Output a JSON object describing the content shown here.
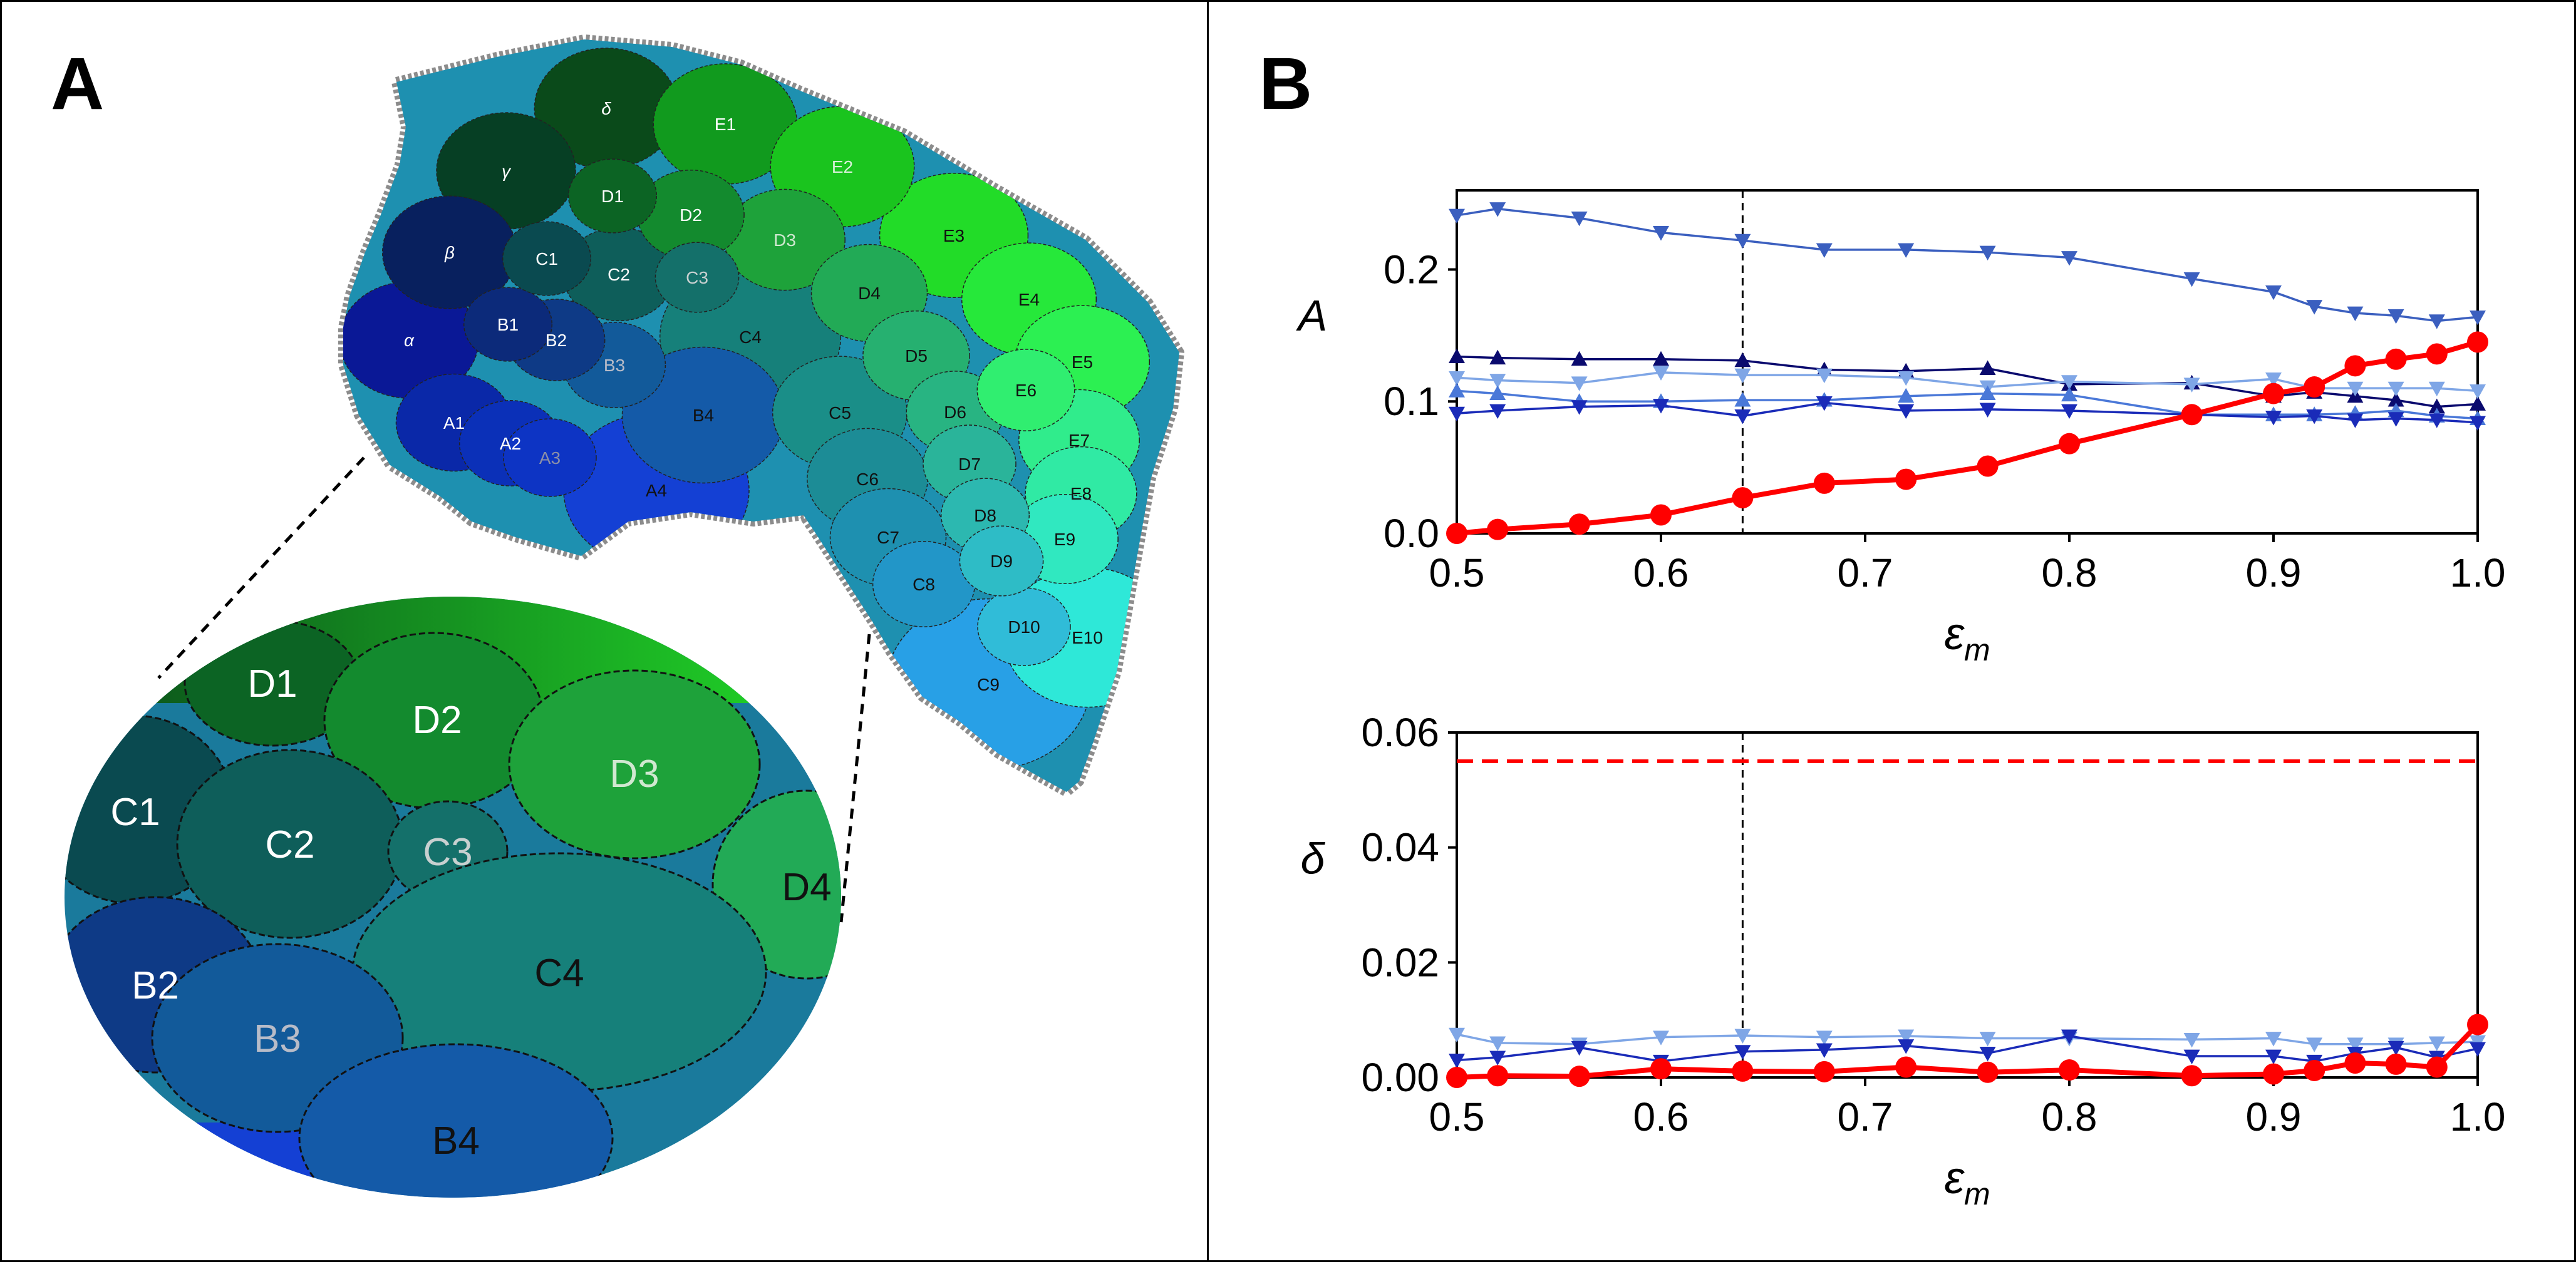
{
  "figure": {
    "panel_a_label": "A",
    "panel_b_label": "B"
  },
  "barrel_map": {
    "barrels": [
      {
        "label": "α",
        "color": "#0a1896",
        "text_color": "#ffffff"
      },
      {
        "label": "β",
        "color": "#08205e",
        "text_color": "#ffffff"
      },
      {
        "label": "γ",
        "color": "#063f24",
        "text_color": "#ffffff"
      },
      {
        "label": "δ",
        "color": "#0a4a1a",
        "text_color": "#ffffff"
      },
      {
        "label": "A1",
        "color": "#0a28a8",
        "text_color": "#ffffff"
      },
      {
        "label": "A2",
        "color": "#0b30b8",
        "text_color": "#ffffff"
      },
      {
        "label": "A3",
        "color": "#0d34c4",
        "text_color": "#8a8fa8"
      },
      {
        "label": "A4",
        "color": "#1440d4",
        "text_color": "#111111"
      },
      {
        "label": "B1",
        "color": "#0c2a7a",
        "text_color": "#ffffff"
      },
      {
        "label": "B2",
        "color": "#0e3a86",
        "text_color": "#ffffff"
      },
      {
        "label": "B3",
        "color": "#125a9a",
        "text_color": "#b8bcc8"
      },
      {
        "label": "B4",
        "color": "#145aa8",
        "text_color": "#111111"
      },
      {
        "label": "C1",
        "color": "#0a4a50",
        "text_color": "#ffffff"
      },
      {
        "label": "C2",
        "color": "#0e5e5a",
        "text_color": "#ffffff"
      },
      {
        "label": "C3",
        "color": "#14706a",
        "text_color": "#c8d0d0"
      },
      {
        "label": "C4",
        "color": "#16807a",
        "text_color": "#111111"
      },
      {
        "label": "C5",
        "color": "#1a8e88",
        "text_color": "#111111"
      },
      {
        "label": "C6",
        "color": "#1c8c96",
        "text_color": "#111111"
      },
      {
        "label": "C7",
        "color": "#1e90b0",
        "text_color": "#111111"
      },
      {
        "label": "C8",
        "color": "#2296c8",
        "text_color": "#111111"
      },
      {
        "label": "C9",
        "color": "#28a0e6",
        "text_color": "#111111"
      },
      {
        "label": "D1",
        "color": "#0c6424",
        "text_color": "#ffffff"
      },
      {
        "label": "D2",
        "color": "#138a2e",
        "text_color": "#ffffff"
      },
      {
        "label": "D3",
        "color": "#1ea23a",
        "text_color": "#d0e8d0"
      },
      {
        "label": "D4",
        "color": "#22aa56",
        "text_color": "#111111"
      },
      {
        "label": "D5",
        "color": "#26b070",
        "text_color": "#111111"
      },
      {
        "label": "D6",
        "color": "#28b482",
        "text_color": "#111111"
      },
      {
        "label": "D7",
        "color": "#2ab49a",
        "text_color": "#111111"
      },
      {
        "label": "D8",
        "color": "#2cb8b0",
        "text_color": "#111111"
      },
      {
        "label": "D9",
        "color": "#2ebcc6",
        "text_color": "#111111"
      },
      {
        "label": "D10",
        "color": "#30bcd8",
        "text_color": "#111111"
      },
      {
        "label": "E1",
        "color": "#119a1e",
        "text_color": "#ffffff"
      },
      {
        "label": "E2",
        "color": "#1ac41e",
        "text_color": "#d8f0d8"
      },
      {
        "label": "E3",
        "color": "#22dc28",
        "text_color": "#111111"
      },
      {
        "label": "E4",
        "color": "#26e83a",
        "text_color": "#111111"
      },
      {
        "label": "E5",
        "color": "#2cf052",
        "text_color": "#111111"
      },
      {
        "label": "E6",
        "color": "#30ee70",
        "text_color": "#111111"
      },
      {
        "label": "E7",
        "color": "#30ec8c",
        "text_color": "#111111"
      },
      {
        "label": "E8",
        "color": "#30eaa4",
        "text_color": "#111111"
      },
      {
        "label": "E9",
        "color": "#30e8c0",
        "text_color": "#111111"
      },
      {
        "label": "E10",
        "color": "#2ee8d8",
        "text_color": "#111111"
      }
    ],
    "inset_barrels": [
      "D1",
      "D2",
      "D3",
      "C1",
      "C2",
      "C3",
      "D4",
      "C4",
      "B2",
      "B3",
      "B4"
    ]
  },
  "chart_data": [
    {
      "type": "line",
      "ylabel": "A",
      "xlabel": "ε",
      "xlabel_subscript": "m",
      "xlim": [
        0.5,
        1.0
      ],
      "ylim": [
        0.0,
        0.26
      ],
      "xticks": [
        "0.5",
        "0.6",
        "0.7",
        "0.8",
        "0.9",
        "1.0"
      ],
      "yticks": [
        "0.0",
        "0.1",
        "0.2"
      ],
      "vline_x": 0.64,
      "series": [
        {
          "color": "#3b5fbf",
          "marker": "triangle-down",
          "x": [
            0.5,
            0.52,
            0.56,
            0.6,
            0.64,
            0.68,
            0.72,
            0.76,
            0.8,
            0.86,
            0.9,
            0.92,
            0.94,
            0.96,
            0.98,
            1.0
          ],
          "y": [
            0.241,
            0.246,
            0.239,
            0.228,
            0.222,
            0.215,
            0.215,
            0.213,
            0.209,
            0.193,
            0.183,
            0.172,
            0.167,
            0.165,
            0.161,
            0.164
          ]
        },
        {
          "color": "#0a0a6e",
          "marker": "triangle-up",
          "x": [
            0.5,
            0.52,
            0.56,
            0.6,
            0.64,
            0.68,
            0.72,
            0.76,
            0.8,
            0.86,
            0.9,
            0.92,
            0.94,
            0.96,
            0.98,
            1.0
          ],
          "y": [
            0.134,
            0.133,
            0.132,
            0.132,
            0.131,
            0.124,
            0.123,
            0.125,
            0.113,
            0.114,
            0.104,
            0.107,
            0.104,
            0.101,
            0.096,
            0.098
          ]
        },
        {
          "color": "#7fa6e6",
          "marker": "triangle-down",
          "x": [
            0.5,
            0.52,
            0.56,
            0.6,
            0.64,
            0.68,
            0.72,
            0.76,
            0.8,
            0.86,
            0.9,
            0.92,
            0.94,
            0.96,
            0.98,
            1.0
          ],
          "y": [
            0.118,
            0.116,
            0.114,
            0.122,
            0.12,
            0.12,
            0.118,
            0.111,
            0.115,
            0.113,
            0.117,
            0.11,
            0.11,
            0.11,
            0.11,
            0.108
          ]
        },
        {
          "color": "#4a78d8",
          "marker": "triangle-up",
          "x": [
            0.5,
            0.52,
            0.56,
            0.6,
            0.64,
            0.68,
            0.72,
            0.76,
            0.8,
            0.86,
            0.9,
            0.92,
            0.94,
            0.96,
            0.98,
            1.0
          ],
          "y": [
            0.108,
            0.106,
            0.1,
            0.1,
            0.101,
            0.101,
            0.104,
            0.106,
            0.105,
            0.09,
            0.09,
            0.09,
            0.091,
            0.093,
            0.089,
            0.087
          ]
        },
        {
          "color": "#1a2bb8",
          "marker": "triangle-down",
          "x": [
            0.5,
            0.52,
            0.56,
            0.6,
            0.64,
            0.68,
            0.72,
            0.76,
            0.8,
            0.86,
            0.9,
            0.92,
            0.94,
            0.96,
            0.98,
            1.0
          ],
          "y": [
            0.091,
            0.093,
            0.096,
            0.097,
            0.089,
            0.099,
            0.093,
            0.094,
            0.093,
            0.09,
            0.088,
            0.089,
            0.086,
            0.087,
            0.086,
            0.084
          ]
        },
        {
          "color": "#ff0000",
          "marker": "circle",
          "x": [
            0.5,
            0.52,
            0.56,
            0.6,
            0.64,
            0.68,
            0.72,
            0.76,
            0.8,
            0.86,
            0.9,
            0.92,
            0.94,
            0.96,
            0.98,
            1.0
          ],
          "y": [
            0.0,
            0.003,
            0.007,
            0.014,
            0.027,
            0.038,
            0.041,
            0.051,
            0.068,
            0.09,
            0.106,
            0.111,
            0.127,
            0.132,
            0.136,
            0.145
          ]
        }
      ]
    },
    {
      "type": "line",
      "ylabel": "δ",
      "xlabel": "ε",
      "xlabel_subscript": "m",
      "xlim": [
        0.5,
        1.0
      ],
      "ylim": [
        0.0,
        0.06
      ],
      "xticks": [
        "0.5",
        "0.6",
        "0.7",
        "0.8",
        "0.9",
        "1.0"
      ],
      "yticks": [
        "0.00",
        "0.02",
        "0.04",
        "0.06"
      ],
      "vline_x": 0.64,
      "hline_y": 0.055,
      "hline_color": "#ff0000",
      "series": [
        {
          "color": "#7fa6e6",
          "marker": "triangle-down",
          "x": [
            0.5,
            0.52,
            0.56,
            0.6,
            0.64,
            0.68,
            0.72,
            0.76,
            0.8,
            0.86,
            0.9,
            0.92,
            0.94,
            0.96,
            0.98,
            1.0
          ],
          "y": [
            0.0075,
            0.006,
            0.0058,
            0.007,
            0.0073,
            0.007,
            0.0072,
            0.0068,
            0.0068,
            0.0066,
            0.0068,
            0.0058,
            0.0058,
            0.0058,
            0.006,
            0.0062
          ]
        },
        {
          "color": "#1a2bb8",
          "marker": "triangle-down",
          "x": [
            0.5,
            0.52,
            0.56,
            0.6,
            0.64,
            0.68,
            0.72,
            0.76,
            0.8,
            0.86,
            0.9,
            0.92,
            0.94,
            0.96,
            0.98,
            1.0
          ],
          "y": [
            0.003,
            0.0035,
            0.0052,
            0.0028,
            0.0045,
            0.0048,
            0.0055,
            0.0042,
            0.0072,
            0.0037,
            0.0037,
            0.0028,
            0.0042,
            0.0052,
            0.0035,
            0.005
          ]
        },
        {
          "color": "#ff0000",
          "marker": "circle",
          "x": [
            0.5,
            0.52,
            0.56,
            0.6,
            0.64,
            0.68,
            0.72,
            0.76,
            0.8,
            0.86,
            0.9,
            0.92,
            0.94,
            0.96,
            0.98,
            1.0
          ],
          "y": [
            0.0,
            0.0003,
            0.0002,
            0.0015,
            0.0011,
            0.001,
            0.0018,
            0.0009,
            0.0013,
            0.0003,
            0.0006,
            0.0012,
            0.0025,
            0.0023,
            0.0018,
            0.0092
          ]
        }
      ]
    }
  ]
}
